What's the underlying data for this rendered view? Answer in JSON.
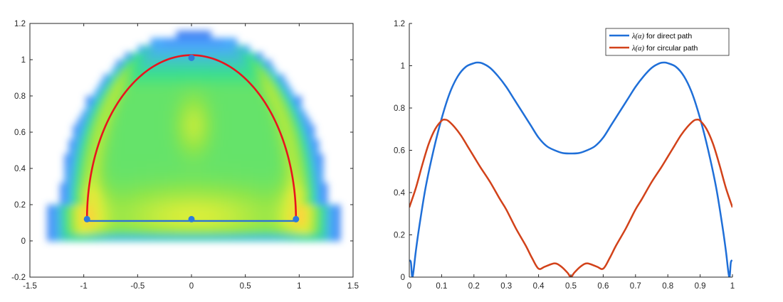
{
  "chart_data": [
    {
      "type": "heatmap",
      "title": "",
      "xlabel": "",
      "ylabel": "",
      "xlim": [
        -1.5,
        1.5
      ],
      "ylim": [
        -0.2,
        1.2
      ],
      "x_ticks": [
        "-1.5",
        "-1",
        "-0.5",
        "0",
        "0.5",
        "1",
        "1.5"
      ],
      "y_ticks": [
        "-0.2",
        "0",
        "0.2",
        "0.4",
        "0.6",
        "0.8",
        "1",
        "1.2"
      ],
      "grid": false,
      "colormap": [
        "#3b4fe0",
        "#4aa8ff",
        "#38e08c",
        "#8ee54a",
        "#d8ee3a",
        "#ffd23c",
        "#ffb438"
      ],
      "overlay": {
        "points": [
          {
            "x": -0.97,
            "y": 0.12
          },
          {
            "x": 0.0,
            "y": 0.12
          },
          {
            "x": 0.97,
            "y": 0.12
          },
          {
            "x": 0.0,
            "y": 1.01
          }
        ],
        "direct_path": {
          "color": "#2e74d4",
          "points": [
            [
              -0.97,
              0.11
            ],
            [
              0.97,
              0.11
            ]
          ]
        },
        "circular_path": {
          "color": "#e8141e",
          "center": [
            0.0,
            0.12
          ],
          "rx": 0.97,
          "ry": 0.905
        }
      }
    },
    {
      "type": "line",
      "title": "",
      "xlabel": "",
      "ylabel": "",
      "xlim": [
        0,
        1
      ],
      "ylim": [
        0,
        1.2
      ],
      "x_ticks": [
        "0",
        "0.1",
        "0.2",
        "0.3",
        "0.4",
        "0.5",
        "0.6",
        "0.7",
        "0.8",
        "0.9",
        "1"
      ],
      "y_ticks": [
        "0",
        "0.2",
        "0.4",
        "0.6",
        "0.8",
        "1",
        "1.2"
      ],
      "grid": false,
      "legend": {
        "position": "top-right",
        "entries": [
          {
            "symbol": "λ(α)",
            "text": "for direct path"
          },
          {
            "symbol": "λ(α)",
            "text": "for circular path"
          }
        ]
      },
      "series": [
        {
          "color": "#1f6fd8",
          "x": [
            0,
            0.005,
            0.01,
            0.02,
            0.03,
            0.05,
            0.075,
            0.1,
            0.125,
            0.15,
            0.175,
            0.2,
            0.21,
            0.225,
            0.25,
            0.275,
            0.3,
            0.325,
            0.35,
            0.375,
            0.4,
            0.425,
            0.45,
            0.475,
            0.5,
            0.525,
            0.55,
            0.575,
            0.6,
            0.625,
            0.65,
            0.675,
            0.7,
            0.725,
            0.75,
            0.775,
            0.79,
            0.8,
            0.825,
            0.85,
            0.875,
            0.9,
            0.925,
            0.95,
            0.97,
            0.98,
            0.99,
            0.995,
            1
          ],
          "y": [
            0.08,
            0.07,
            0.0,
            0.12,
            0.23,
            0.42,
            0.6,
            0.75,
            0.87,
            0.95,
            0.995,
            1.012,
            1.015,
            1.012,
            0.99,
            0.95,
            0.9,
            0.84,
            0.78,
            0.72,
            0.66,
            0.62,
            0.6,
            0.587,
            0.585,
            0.587,
            0.6,
            0.62,
            0.66,
            0.72,
            0.78,
            0.84,
            0.9,
            0.95,
            0.99,
            1.012,
            1.015,
            1.012,
            0.995,
            0.95,
            0.87,
            0.75,
            0.6,
            0.42,
            0.23,
            0.12,
            0.0,
            0.07,
            0.08
          ]
        },
        {
          "color": "#d2421a",
          "x": [
            0,
            0.02,
            0.04,
            0.06,
            0.08,
            0.1,
            0.11,
            0.12,
            0.14,
            0.16,
            0.18,
            0.2,
            0.22,
            0.25,
            0.28,
            0.3,
            0.33,
            0.36,
            0.38,
            0.4,
            0.42,
            0.45,
            0.47,
            0.49,
            0.5,
            0.51,
            0.53,
            0.55,
            0.58,
            0.6,
            0.62,
            0.64,
            0.67,
            0.7,
            0.72,
            0.75,
            0.78,
            0.8,
            0.82,
            0.84,
            0.86,
            0.88,
            0.89,
            0.9,
            0.92,
            0.94,
            0.96,
            0.98,
            1
          ],
          "y": [
            0.33,
            0.42,
            0.53,
            0.63,
            0.7,
            0.74,
            0.745,
            0.74,
            0.71,
            0.67,
            0.62,
            0.57,
            0.52,
            0.45,
            0.37,
            0.32,
            0.23,
            0.15,
            0.09,
            0.04,
            0.05,
            0.065,
            0.05,
            0.02,
            0.0,
            0.02,
            0.05,
            0.065,
            0.05,
            0.04,
            0.09,
            0.15,
            0.23,
            0.32,
            0.37,
            0.45,
            0.52,
            0.57,
            0.62,
            0.67,
            0.71,
            0.74,
            0.745,
            0.74,
            0.7,
            0.63,
            0.53,
            0.42,
            0.33
          ]
        }
      ]
    }
  ]
}
